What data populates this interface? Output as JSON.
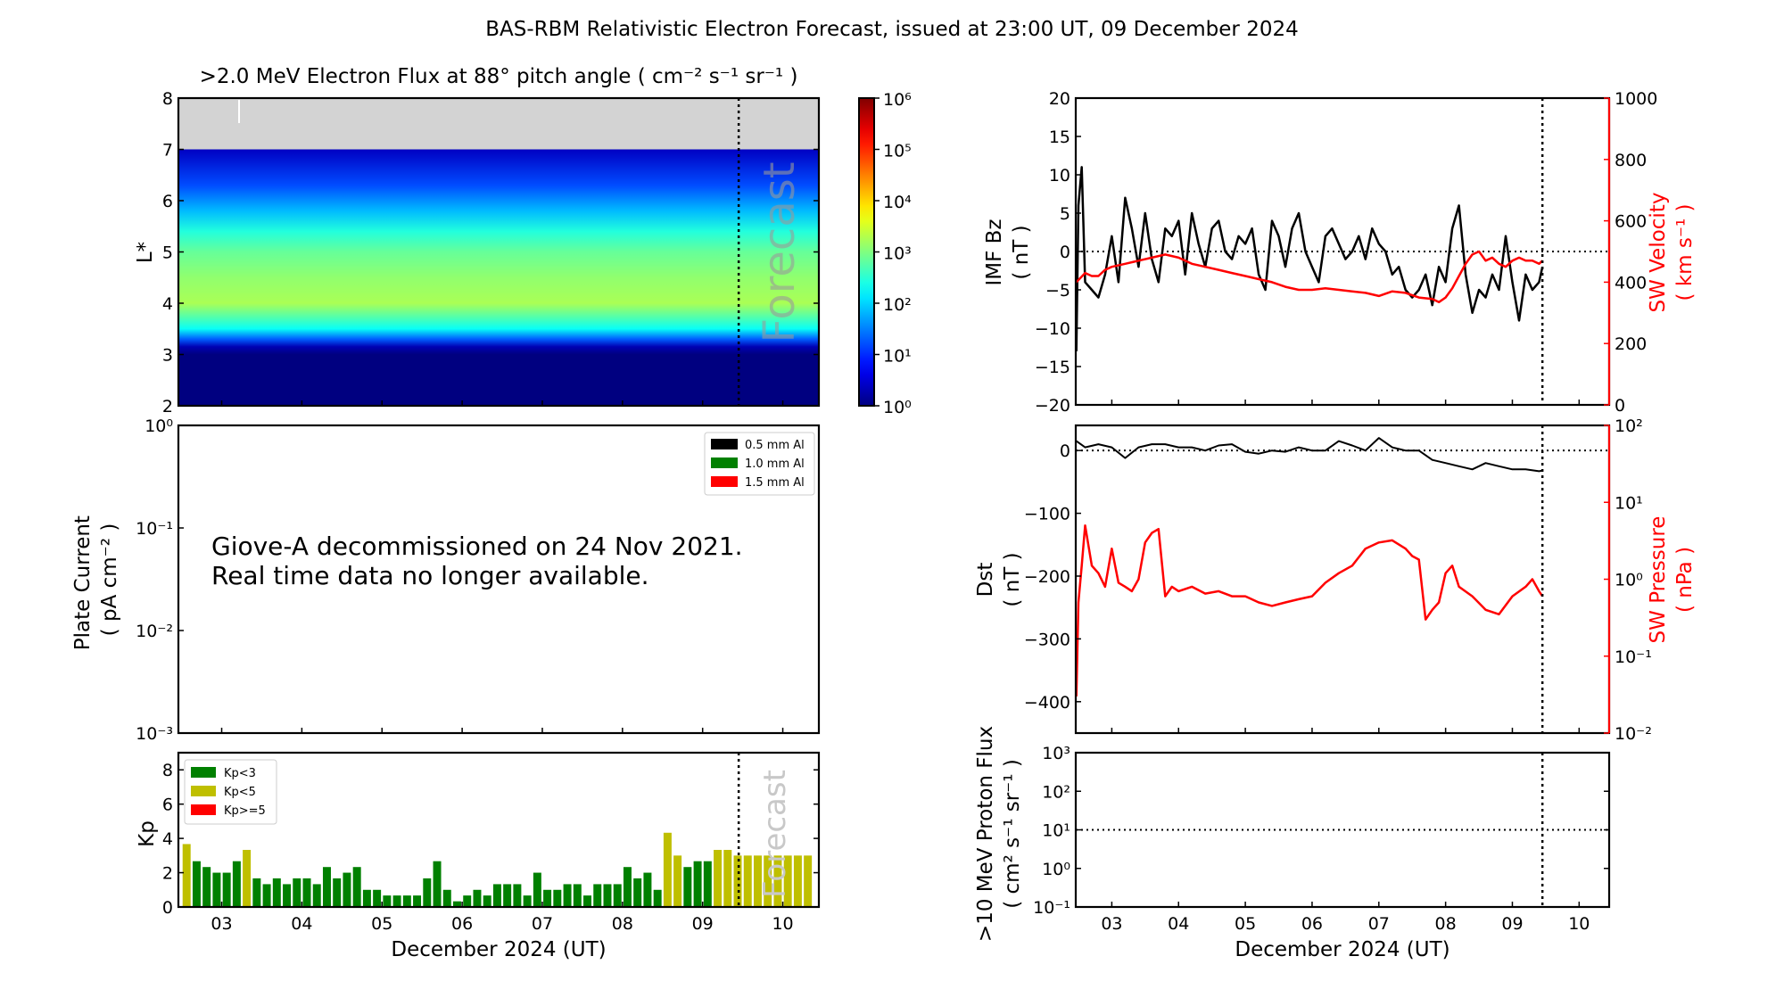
{
  "figure": {
    "title": "BAS-RBM Relativistic Electron Forecast, issued at 23:00 UT, 09 December 2024",
    "forecast_label": "Forecast",
    "xlabel": "December 2024 (UT)"
  },
  "chart_data": [
    {
      "id": "electron-flux",
      "type": "heatmap",
      "title": ">2.0 MeV Electron Flux at 88° pitch angle ( cm⁻² s⁻¹ sr⁻¹ )",
      "ylabel": "L*",
      "ylim": [
        2,
        8
      ],
      "yticks": [
        "2",
        "3",
        "4",
        "5",
        "6",
        "7",
        "8"
      ],
      "xlim": [
        2.46,
        10.45
      ],
      "colorbar": {
        "scale": "log",
        "range": [
          1,
          1000000
        ],
        "ticks": [
          "10⁰",
          "10¹",
          "10²",
          "10³",
          "10⁴",
          "10⁵",
          "10⁶"
        ],
        "colormap": "jet"
      },
      "no_data_region": {
        "L_min": 7,
        "L_max": 8,
        "color": "#d3d3d3"
      },
      "profile_by_L": [
        {
          "L": 2.0,
          "log_flux": 0.0
        },
        {
          "L": 3.0,
          "log_flux": 0.0
        },
        {
          "L": 3.15,
          "log_flux": 0.3
        },
        {
          "L": 3.3,
          "log_flux": 1.3
        },
        {
          "L": 3.5,
          "log_flux": 2.3
        },
        {
          "L": 4.0,
          "log_flux": 3.25
        },
        {
          "L": 4.5,
          "log_flux": 3.1
        },
        {
          "L": 5.0,
          "log_flux": 2.85
        },
        {
          "L": 5.4,
          "log_flux": 2.45
        },
        {
          "L": 5.8,
          "log_flux": 1.85
        },
        {
          "L": 6.3,
          "log_flux": 1.2
        },
        {
          "L": 7.0,
          "log_flux": 0.4
        }
      ],
      "forecast_start_day": 9.45
    },
    {
      "id": "plate-current",
      "type": "line",
      "ylabel": "Plate Current ( pA cm⁻² )",
      "yscale": "log",
      "ylim": [
        0.001,
        1
      ],
      "yticks": [
        "10⁻³",
        "10⁻²",
        "10⁻¹",
        "10⁰"
      ],
      "xlim": [
        2.46,
        10.45
      ],
      "legend": {
        "placement": "top-right",
        "entries": [
          {
            "label": "0.5 mm Al",
            "color": "#000000"
          },
          {
            "label": "1.0 mm Al",
            "color": "#008000"
          },
          {
            "label": "1.5 mm Al",
            "color": "#ff0000"
          }
        ]
      },
      "annotation": [
        "Giove-A decommissioned on 24 Nov 2021.",
        "Real time data no longer available."
      ],
      "series": []
    },
    {
      "id": "kp",
      "type": "bar",
      "ylabel": "Kp",
      "ylim": [
        0,
        9
      ],
      "yticks": [
        "0",
        "2",
        "4",
        "6",
        "8"
      ],
      "xlim": [
        2.46,
        10.45
      ],
      "xticks": [
        "03",
        "04",
        "05",
        "06",
        "07",
        "08",
        "09",
        "10"
      ],
      "xtick_days": [
        3,
        4,
        5,
        6,
        7,
        8,
        9,
        10
      ],
      "bar_width_hours": 3,
      "first_bar_center_day": 2.5625,
      "legend": {
        "placement": "top-left",
        "entries": [
          {
            "label": "Kp<3",
            "color": "#008000"
          },
          {
            "label": "Kp<5",
            "color": "#bfbf00"
          },
          {
            "label": "Kp>=5",
            "color": "#ff0000"
          }
        ]
      },
      "values": [
        3.67,
        2.67,
        2.33,
        2,
        2,
        2.67,
        3.33,
        1.67,
        1.33,
        1.67,
        1.33,
        1.67,
        1.67,
        1.33,
        2.33,
        1.67,
        2,
        2.33,
        1,
        1,
        0.67,
        0.67,
        0.67,
        0.67,
        1.67,
        2.67,
        1,
        0.33,
        0.67,
        1,
        0.67,
        1.33,
        1.33,
        1.33,
        0.67,
        2,
        1,
        1,
        1.33,
        1.33,
        0.67,
        1.33,
        1.33,
        1.33,
        2.33,
        1.67,
        2,
        1,
        4.33,
        3,
        2.33,
        2.67,
        2.67,
        3.33,
        3.33,
        3,
        3,
        3,
        3,
        3,
        3,
        3,
        3
      ],
      "forecast_start_day": 9.45
    },
    {
      "id": "imf-bz-sw-velocity",
      "type": "line",
      "ylabel": "IMF Bz ( nT )",
      "ylim": [
        -20,
        20
      ],
      "yticks": [
        "−20",
        "−15",
        "−10",
        "−5",
        "0",
        "5",
        "10",
        "15",
        "20"
      ],
      "y2label": "SW Velocity ( km s⁻¹ )",
      "y2lim": [
        0,
        1000
      ],
      "y2ticks": [
        "0",
        "200",
        "400",
        "600",
        "800",
        "1000"
      ],
      "xlim": [
        2.46,
        10.45
      ],
      "reference_line_y": 0,
      "forecast_start_day": 9.45,
      "series": [
        {
          "name": "IMF Bz",
          "axis": "left",
          "color": "#000000",
          "x": [
            2.47,
            2.5,
            2.55,
            2.6,
            2.7,
            2.8,
            2.9,
            3.0,
            3.1,
            3.2,
            3.3,
            3.4,
            3.5,
            3.6,
            3.7,
            3.8,
            3.9,
            4.0,
            4.1,
            4.2,
            4.3,
            4.4,
            4.5,
            4.6,
            4.7,
            4.8,
            4.9,
            5.0,
            5.1,
            5.2,
            5.3,
            5.4,
            5.5,
            5.6,
            5.7,
            5.8,
            5.9,
            6.0,
            6.1,
            6.2,
            6.3,
            6.4,
            6.5,
            6.6,
            6.7,
            6.8,
            6.9,
            7.0,
            7.1,
            7.2,
            7.3,
            7.4,
            7.5,
            7.6,
            7.7,
            7.8,
            7.9,
            8.0,
            8.1,
            8.2,
            8.3,
            8.4,
            8.5,
            8.6,
            8.7,
            8.8,
            8.9,
            9.0,
            9.1,
            9.2,
            9.3,
            9.4,
            9.45
          ],
          "y": [
            -13,
            6,
            11,
            -4,
            -5,
            -6,
            -3,
            2,
            -4,
            7,
            3,
            -2,
            5,
            -1,
            -4,
            3,
            2,
            4,
            -3,
            5,
            1,
            -2,
            3,
            4,
            0,
            -1,
            2,
            1,
            3,
            -3,
            -5,
            4,
            2,
            -2,
            3,
            5,
            0,
            -2,
            -4,
            2,
            3,
            1,
            -1,
            0,
            2,
            -1,
            3,
            1,
            0,
            -3,
            -2,
            -5,
            -6,
            -5,
            -3,
            -7,
            -2,
            -4,
            3,
            6,
            -3,
            -8,
            -5,
            -6,
            -3,
            -5,
            2,
            -4,
            -9,
            -3,
            -5,
            -4,
            -2
          ]
        },
        {
          "name": "SW Velocity",
          "axis": "right",
          "color": "#ff0000",
          "x": [
            2.47,
            2.6,
            2.7,
            2.8,
            2.9,
            3.0,
            3.2,
            3.4,
            3.6,
            3.8,
            4.0,
            4.2,
            4.4,
            4.6,
            4.8,
            5.0,
            5.2,
            5.4,
            5.6,
            5.8,
            6.0,
            6.2,
            6.4,
            6.6,
            6.8,
            7.0,
            7.2,
            7.4,
            7.6,
            7.8,
            7.9,
            8.0,
            8.1,
            8.2,
            8.3,
            8.4,
            8.5,
            8.6,
            8.7,
            8.8,
            8.9,
            9.0,
            9.1,
            9.2,
            9.3,
            9.4,
            9.45
          ],
          "y": [
            400,
            430,
            420,
            420,
            440,
            450,
            460,
            470,
            480,
            490,
            480,
            460,
            450,
            440,
            430,
            420,
            410,
            400,
            385,
            375,
            375,
            380,
            375,
            370,
            365,
            355,
            370,
            365,
            350,
            345,
            335,
            350,
            380,
            420,
            460,
            490,
            500,
            470,
            480,
            460,
            450,
            470,
            480,
            470,
            470,
            460,
            470
          ]
        }
      ]
    },
    {
      "id": "dst-sw-pressure",
      "type": "line",
      "ylabel": "Dst ( nT )",
      "ylim": [
        -450,
        40
      ],
      "yticks": [
        "−400",
        "−300",
        "−200",
        "−100",
        "0"
      ],
      "y2label": "SW Pressure ( nPa )",
      "y2scale": "log",
      "y2lim": [
        0.01,
        100
      ],
      "y2ticks": [
        "10⁻²",
        "10⁻¹",
        "10⁰",
        "10¹",
        "10²"
      ],
      "xlim": [
        2.46,
        10.45
      ],
      "reference_line_y": 0,
      "forecast_start_day": 9.45,
      "series": [
        {
          "name": "Dst",
          "axis": "left",
          "color": "#000000",
          "x": [
            2.47,
            2.6,
            2.8,
            3.0,
            3.2,
            3.4,
            3.6,
            3.8,
            4.0,
            4.2,
            4.4,
            4.6,
            4.8,
            5.0,
            5.2,
            5.4,
            5.6,
            5.8,
            6.0,
            6.2,
            6.4,
            6.6,
            6.8,
            7.0,
            7.2,
            7.4,
            7.6,
            7.8,
            8.0,
            8.2,
            8.4,
            8.6,
            8.8,
            9.0,
            9.2,
            9.4,
            9.45
          ],
          "y": [
            15,
            5,
            10,
            5,
            -12,
            5,
            10,
            10,
            5,
            5,
            0,
            8,
            10,
            -2,
            -5,
            0,
            -2,
            5,
            0,
            0,
            15,
            8,
            0,
            20,
            5,
            0,
            0,
            -15,
            -20,
            -25,
            -30,
            -20,
            -25,
            -30,
            -30,
            -33,
            -32
          ]
        },
        {
          "name": "SW Pressure",
          "axis": "right",
          "color": "#ff0000",
          "x": [
            2.47,
            2.5,
            2.55,
            2.6,
            2.7,
            2.8,
            2.9,
            3.0,
            3.1,
            3.2,
            3.3,
            3.4,
            3.5,
            3.6,
            3.7,
            3.8,
            3.9,
            4.0,
            4.2,
            4.4,
            4.6,
            4.8,
            5.0,
            5.2,
            5.4,
            5.6,
            5.8,
            6.0,
            6.2,
            6.4,
            6.6,
            6.8,
            7.0,
            7.2,
            7.4,
            7.5,
            7.6,
            7.7,
            7.8,
            7.9,
            8.0,
            8.1,
            8.2,
            8.4,
            8.6,
            8.8,
            9.0,
            9.2,
            9.3,
            9.4,
            9.45
          ],
          "y": [
            0.03,
            0.5,
            1.5,
            5,
            1.5,
            1.2,
            0.8,
            2.5,
            0.9,
            0.8,
            0.7,
            1,
            3,
            4,
            4.5,
            0.6,
            0.8,
            0.7,
            0.8,
            0.65,
            0.7,
            0.6,
            0.6,
            0.5,
            0.45,
            0.5,
            0.55,
            0.6,
            0.9,
            1.2,
            1.5,
            2.5,
            3,
            3.2,
            2.5,
            2,
            1.8,
            0.3,
            0.4,
            0.5,
            1.2,
            1.5,
            0.8,
            0.6,
            0.4,
            0.35,
            0.6,
            0.8,
            1.0,
            0.7,
            0.6
          ]
        }
      ]
    },
    {
      "id": "proton-flux",
      "type": "line",
      "ylabel": ">10 MeV Proton Flux ( cm² s⁻¹ sr⁻¹ )",
      "yscale": "log",
      "ylim": [
        0.1,
        1000
      ],
      "yticks": [
        "10⁻¹",
        "10⁰",
        "10¹",
        "10²",
        "10³"
      ],
      "xlim": [
        2.46,
        10.45
      ],
      "xticks": [
        "03",
        "04",
        "05",
        "06",
        "07",
        "08",
        "09",
        "10"
      ],
      "xtick_days": [
        3,
        4,
        5,
        6,
        7,
        8,
        9,
        10
      ],
      "reference_line_y": 10,
      "forecast_start_day": 9.45,
      "series": []
    }
  ]
}
